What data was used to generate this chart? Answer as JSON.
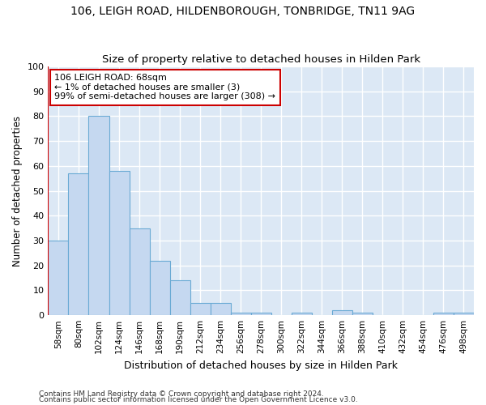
{
  "title": "106, LEIGH ROAD, HILDENBOROUGH, TONBRIDGE, TN11 9AG",
  "subtitle": "Size of property relative to detached houses in Hilden Park",
  "xlabel": "Distribution of detached houses by size in Hilden Park",
  "ylabel": "Number of detached properties",
  "footnote1": "Contains HM Land Registry data © Crown copyright and database right 2024.",
  "footnote2": "Contains public sector information licensed under the Open Government Licence v3.0.",
  "categories": [
    "58sqm",
    "80sqm",
    "102sqm",
    "124sqm",
    "146sqm",
    "168sqm",
    "190sqm",
    "212sqm",
    "234sqm",
    "256sqm",
    "278sqm",
    "300sqm",
    "322sqm",
    "344sqm",
    "366sqm",
    "388sqm",
    "410sqm",
    "432sqm",
    "454sqm",
    "476sqm",
    "498sqm"
  ],
  "values": [
    30,
    57,
    80,
    58,
    35,
    22,
    14,
    5,
    5,
    1,
    1,
    0,
    1,
    0,
    2,
    1,
    0,
    0,
    0,
    1,
    1
  ],
  "bar_color": "#c5d8f0",
  "bar_edge_color": "#6aaad4",
  "background_color": "#dce8f5",
  "grid_color": "#ffffff",
  "fig_background": "#ffffff",
  "ylim": [
    0,
    100
  ],
  "yticks": [
    0,
    10,
    20,
    30,
    40,
    50,
    60,
    70,
    80,
    90,
    100
  ],
  "annotation_text": "106 LEIGH ROAD: 68sqm\n← 1% of detached houses are smaller (3)\n99% of semi-detached houses are larger (308) →",
  "vline_color": "#cc0000",
  "box_edge_color": "#cc0000"
}
